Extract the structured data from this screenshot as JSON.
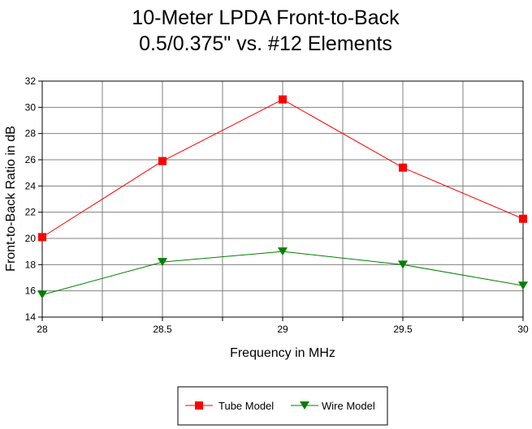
{
  "chart_data": {
    "type": "line",
    "title_lines": [
      "10-Meter LPDA Front-to-Back",
      "0.5/0.375\" vs. #12 Elements"
    ],
    "xlabel": "Frequency in MHz",
    "ylabel": "Front-to-Back Ratio in dB",
    "x": [
      28,
      28.5,
      29,
      29.5,
      30
    ],
    "x_tick_labels": [
      "28",
      "28.5",
      "29",
      "29.5",
      "30"
    ],
    "x_minor_ticks": [
      28.25,
      28.75,
      29.25,
      29.75
    ],
    "xlim": [
      28,
      30
    ],
    "ylim": [
      14,
      32
    ],
    "y_ticks": [
      14,
      16,
      18,
      20,
      22,
      24,
      26,
      28,
      30,
      32
    ],
    "y_tick_labels": [
      "14",
      "16",
      "18",
      "20",
      "22",
      "24",
      "26",
      "28",
      "30",
      "32"
    ],
    "grid": true,
    "legend_position": "bottom-center",
    "series": [
      {
        "name": "Tube Model",
        "values": [
          20.1,
          25.9,
          30.6,
          25.4,
          21.5
        ],
        "color": "#ff0000",
        "marker": "square"
      },
      {
        "name": "Wire Model",
        "values": [
          15.7,
          18.2,
          19.0,
          18.0,
          16.4
        ],
        "color": "#008000",
        "marker": "triangle-down"
      }
    ],
    "colors": {
      "grid": "#808080",
      "axis": "#000000",
      "background": "#ffffff"
    }
  }
}
